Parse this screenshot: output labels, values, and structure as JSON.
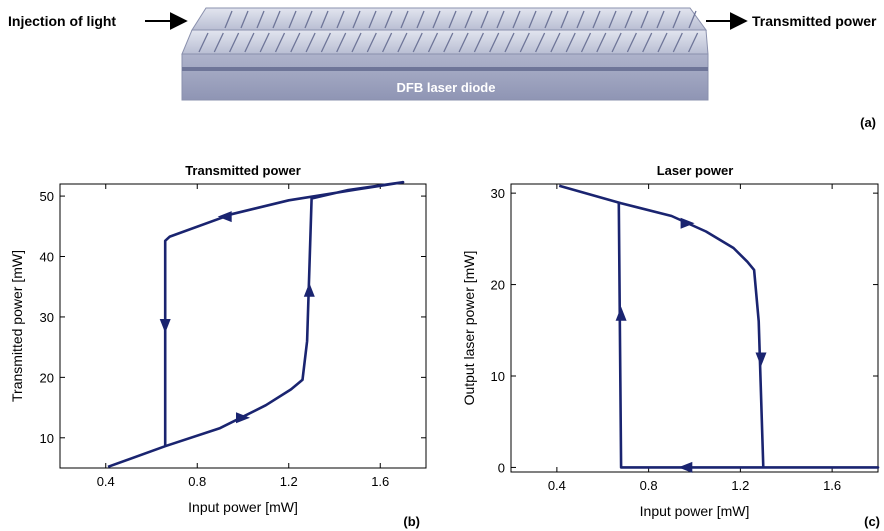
{
  "diagram": {
    "input_label": "Injection of light",
    "output_label": "Transmitted power",
    "device_label": "DFB laser diode",
    "panel_tag": "(a)"
  },
  "colors": {
    "curve": "#1a2470",
    "device_top": "#cdd1e0",
    "device_front": "#9aa0bf",
    "device_stripe": "#6e7598"
  },
  "chart_data": [
    {
      "type": "line",
      "title": "Transmitted power",
      "xlabel": "Input power [mW]",
      "ylabel": "Transmitted power [mW]",
      "panel_tag": "(b)",
      "xlim": [
        0.2,
        1.8
      ],
      "ylim": [
        5,
        52
      ],
      "xticks": [
        0.4,
        0.8,
        1.2,
        1.6
      ],
      "xtick_labels": [
        "0.4",
        "0.8",
        "1.2",
        "1.6"
      ],
      "yticks": [
        10,
        20,
        30,
        40,
        50
      ],
      "ytick_labels": [
        "10",
        "20",
        "30",
        "40",
        "50"
      ],
      "grid": false,
      "series": [
        {
          "points": [
            [
              0.41,
              5.2
            ],
            [
              0.66,
              8.6
            ],
            [
              0.9,
              11.6
            ],
            [
              1.1,
              15.4
            ],
            [
              1.21,
              18.0
            ],
            [
              1.26,
              19.6
            ],
            [
              1.28,
              26.0
            ],
            [
              1.3,
              49.6
            ],
            [
              1.46,
              51.0
            ],
            [
              1.7,
              52.3
            ],
            [
              1.5,
              51.1
            ],
            [
              1.2,
              49.3
            ],
            [
              0.95,
              47.0
            ],
            [
              0.68,
              43.3
            ],
            [
              0.66,
              42.6
            ],
            [
              0.66,
              8.6
            ]
          ]
        }
      ],
      "arrows": [
        {
          "x": 1.0,
          "y": 13.3,
          "direction": "right"
        },
        {
          "x": 1.29,
          "y": 34.5,
          "direction": "up"
        },
        {
          "x": 0.92,
          "y": 46.6,
          "direction": "left"
        },
        {
          "x": 0.66,
          "y": 28.5,
          "direction": "down"
        }
      ]
    },
    {
      "type": "line",
      "title": "Laser power",
      "xlabel": "Input power [mW]",
      "ylabel": "Output laser power [mW]",
      "panel_tag": "(c)",
      "xlim": [
        0.2,
        1.8
      ],
      "ylim": [
        -0.5,
        31
      ],
      "xticks": [
        0.4,
        0.8,
        1.2,
        1.6
      ],
      "xtick_labels": [
        "0.4",
        "0.8",
        "1.2",
        "1.6"
      ],
      "yticks": [
        0,
        10,
        20,
        30
      ],
      "ytick_labels": [
        "0",
        "10",
        "20",
        "30"
      ],
      "grid": false,
      "series": [
        {
          "points": [
            [
              0.41,
              30.8
            ],
            [
              0.68,
              28.9
            ],
            [
              0.9,
              27.5
            ],
            [
              1.05,
              25.8
            ],
            [
              1.17,
              24.0
            ],
            [
              1.23,
              22.5
            ],
            [
              1.26,
              21.6
            ],
            [
              1.28,
              16.0
            ],
            [
              1.3,
              0
            ],
            [
              1.8,
              0
            ],
            [
              0.68,
              0
            ],
            [
              0.67,
              28.9
            ]
          ]
        }
      ],
      "arrows": [
        {
          "x": 0.97,
          "y": 26.7,
          "direction": "right"
        },
        {
          "x": 1.29,
          "y": 11.8,
          "direction": "down"
        },
        {
          "x": 0.96,
          "y": 0,
          "direction": "left"
        },
        {
          "x": 0.68,
          "y": 16.8,
          "direction": "up"
        }
      ]
    }
  ]
}
